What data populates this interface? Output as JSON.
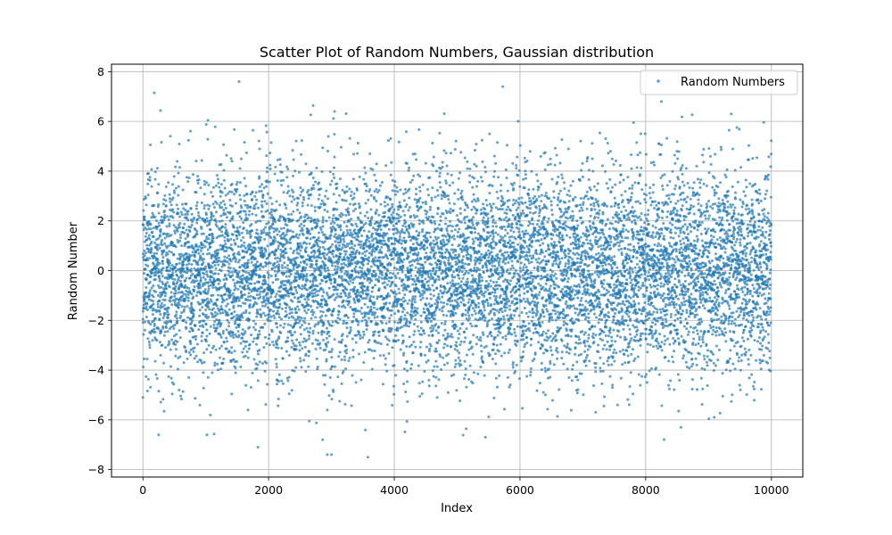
{
  "chart_data": {
    "type": "scatter",
    "title": "Scatter Plot of Random Numbers, Gaussian distribution",
    "xlabel": "Index",
    "ylabel": "Random Number",
    "xlim": [
      -500,
      10500
    ],
    "ylim": [
      -8.3,
      8.3
    ],
    "x_ticks": [
      0,
      2000,
      4000,
      6000,
      8000,
      10000
    ],
    "y_ticks": [
      -8,
      -6,
      -4,
      -2,
      0,
      2,
      4,
      6,
      8
    ],
    "grid": true,
    "legend_position": "upper right",
    "series": [
      {
        "name": "Random Numbers",
        "color": "#1f77b4",
        "distribution": "gaussian",
        "n_points": 10000,
        "x_range": [
          0,
          9999
        ],
        "mean": 0,
        "std": 2,
        "notable_points": [
          {
            "x": 180,
            "y": 7.15
          },
          {
            "x": 1530,
            "y": 7.6
          },
          {
            "x": 8250,
            "y": 6.8
          },
          {
            "x": 3050,
            "y": 6.4
          },
          {
            "x": 3580,
            "y": -7.5
          },
          {
            "x": 1830,
            "y": -7.1
          },
          {
            "x": 2860,
            "y": -6.8
          },
          {
            "x": 5450,
            "y": -6.7
          },
          {
            "x": 250,
            "y": -6.6
          },
          {
            "x": 1020,
            "y": -6.6
          },
          {
            "x": 8560,
            "y": -6.3
          },
          {
            "x": 0,
            "y": -5.1
          }
        ]
      }
    ]
  }
}
